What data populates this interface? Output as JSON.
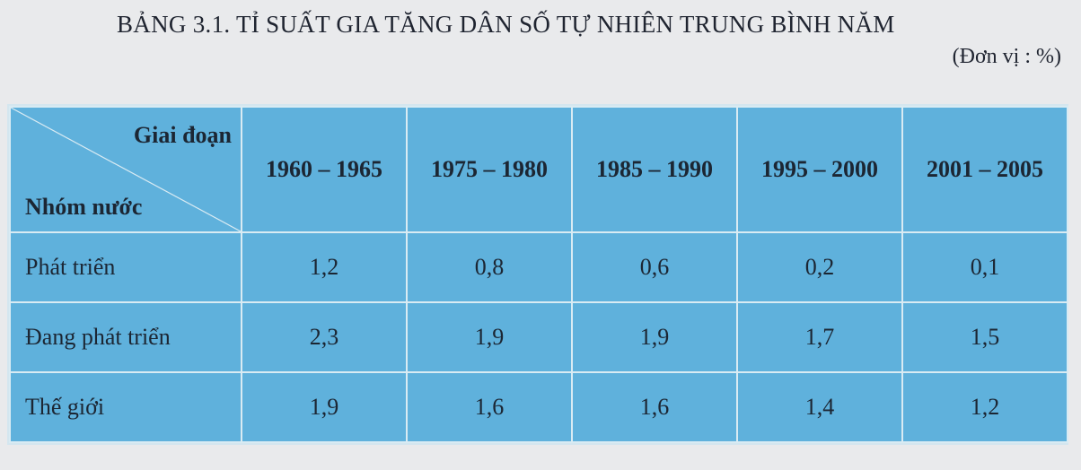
{
  "title": "BẢNG 3.1. TỈ SUẤT GIA TĂNG DÂN SỐ TỰ NHIÊN TRUNG BÌNH NĂM",
  "unit": "(Đơn vị : %)",
  "table": {
    "corner_top": "Giai đoạn",
    "corner_bottom": "Nhóm nước",
    "periods": [
      "1960 – 1965",
      "1975 – 1980",
      "1985 – 1990",
      "1995 – 2000",
      "2001 – 2005"
    ],
    "rows": [
      {
        "group": "Phát triển",
        "values": [
          "1,2",
          "0,8",
          "0,6",
          "0,2",
          "0,1"
        ]
      },
      {
        "group": "Đang phát triển",
        "values": [
          "2,3",
          "1,9",
          "1,9",
          "1,7",
          "1,5"
        ]
      },
      {
        "group": "Thế giới",
        "values": [
          "1,9",
          "1,6",
          "1,6",
          "1,4",
          "1,2"
        ]
      }
    ]
  }
}
